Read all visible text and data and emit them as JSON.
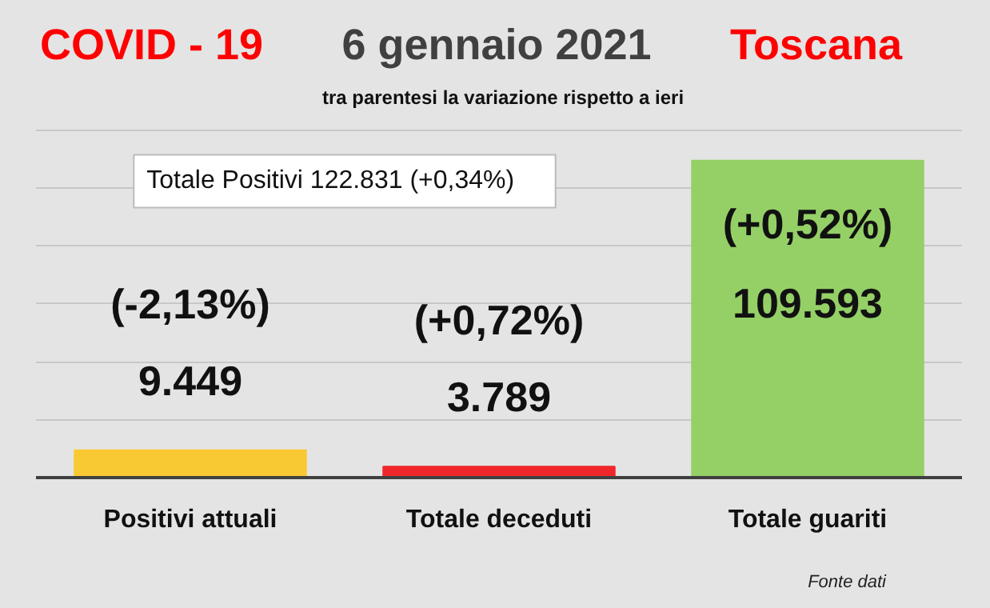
{
  "chart_data": {
    "type": "bar",
    "title": "COVID - 19",
    "subtitle": "tra parentesi la variazione rispetto a ieri",
    "categories": [
      "Positivi attuali",
      "Totale deceduti",
      "Totale guariti"
    ],
    "values": [
      9449,
      3789,
      109593
    ],
    "colors": [
      "#f9c933",
      "#f0272a",
      "#95d067"
    ],
    "value_labels": [
      "9.449",
      "3.789",
      "109.593"
    ],
    "grid": "y",
    "annotations": [
      "6 gennaio 2021",
      "Toscana",
      "Totale Positivi     122.831 (+0,34%)",
      "(-2,13%)",
      "(+0,72%)",
      "(+0,52%)",
      "Fonte dati"
    ]
  }
}
